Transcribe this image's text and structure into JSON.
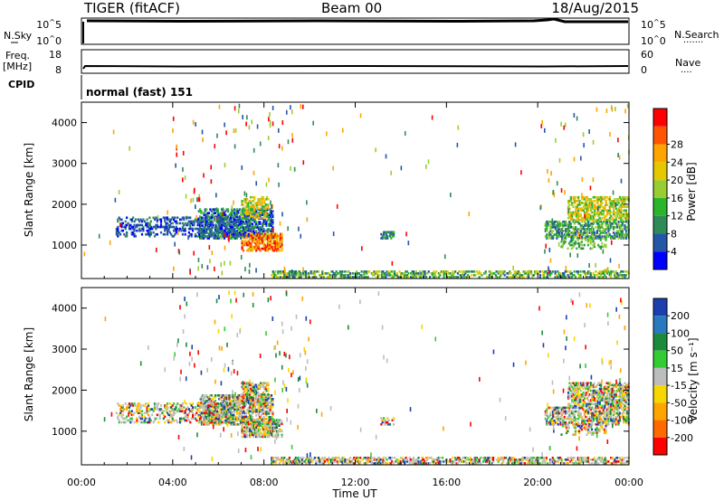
{
  "header": {
    "station": "TIGER (fitACF)",
    "beam": "Beam 00",
    "date": "18/Aug/2015"
  },
  "noise_panel": {
    "left_label": "N.Sky",
    "right_label": "N.Search",
    "right_dots": "·······",
    "left_ticks": [
      "10^5",
      "10^0"
    ],
    "right_ticks": [
      "10^5",
      "10^0"
    ]
  },
  "freq_panel": {
    "left_label_1": "Freq.",
    "left_label_2": "[MHz]",
    "right_label": "Nave",
    "right_dots": "····",
    "left_ticks": [
      "18",
      "8"
    ],
    "right_ticks": [
      "60",
      "0"
    ]
  },
  "cpid_panel": {
    "label": "CPID",
    "mode_text": "normal (fast) 151"
  },
  "chart_data": [
    {
      "type": "heatmap",
      "name": "power",
      "ylabel": "Slant Range [km]",
      "yticks": [
        "1000",
        "2000",
        "3000",
        "4000"
      ],
      "ylim": [
        180,
        4500
      ],
      "colorbar_label": "Power [dB]",
      "colorbar_ticks": [
        "4",
        "8",
        "12",
        "16",
        "20",
        "24",
        "28"
      ],
      "colors": [
        "#0000ff",
        "#2456a8",
        "#2e8b57",
        "#2cb52c",
        "#9acd32",
        "#e6c800",
        "#ffa500",
        "#ff5500",
        "#ff0000"
      ]
    },
    {
      "type": "heatmap",
      "name": "velocity",
      "xlabel": "Time UT",
      "xticks": [
        "00:00",
        "04:00",
        "08:00",
        "12:00",
        "16:00",
        "20:00",
        "00:00"
      ],
      "ylabel": "Slant Range [km]",
      "yticks": [
        "1000",
        "2000",
        "3000",
        "4000"
      ],
      "ylim": [
        180,
        4500
      ],
      "colorbar_label": "Velocity [m s⁻¹]",
      "colorbar_ticks": [
        "200",
        "100",
        "50",
        "15",
        "-15",
        "-50",
        "-100",
        "-200"
      ],
      "colors": [
        "#1c3fb0",
        "#2a78c0",
        "#1b8a3a",
        "#33cc33",
        "#bdbdbd",
        "#f7d700",
        "#ffa500",
        "#ff6a00",
        "#ff0000"
      ]
    }
  ]
}
